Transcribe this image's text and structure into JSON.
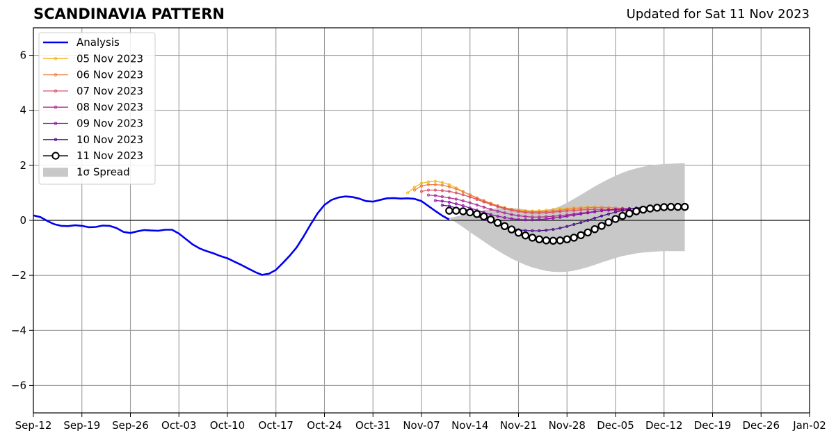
{
  "chart_data": {
    "type": "line",
    "title": "SCANDINAVIA PATTERN",
    "subtitle": "Updated for Sat 11 Nov 2023",
    "xlabel": "",
    "ylabel": "",
    "xlim": [
      "2023-09-12",
      "2024-01-02"
    ],
    "ylim": [
      -7,
      7
    ],
    "grid": true,
    "legend_position": "top-left",
    "x_ticks": [
      "2023-09-12",
      "2023-09-19",
      "2023-09-26",
      "2023-10-03",
      "2023-10-10",
      "2023-10-17",
      "2023-10-24",
      "2023-10-31",
      "2023-11-07",
      "2023-11-14",
      "2023-11-21",
      "2023-11-28",
      "2023-12-05",
      "2023-12-12",
      "2023-12-19",
      "2023-12-26",
      "2024-01-02"
    ],
    "x_tick_labels": [
      "Sep-12",
      "Sep-19",
      "Sep-26",
      "Oct-03",
      "Oct-10",
      "Oct-17",
      "Oct-24",
      "Oct-31",
      "Nov-07",
      "Nov-14",
      "Nov-21",
      "Nov-28",
      "Dec-05",
      "Dec-12",
      "Dec-19",
      "Dec-26",
      "Jan-02"
    ],
    "y_ticks": [
      -6,
      -4,
      -2,
      0,
      2,
      4,
      6
    ],
    "y_tick_labels": [
      "−6",
      "−4",
      "−2",
      "0",
      "2",
      "4",
      "6"
    ],
    "analysis": {
      "name": "Analysis",
      "color": "#0000ee",
      "points": [
        [
          "2023-09-12",
          0.18
        ],
        [
          "2023-09-13",
          0.12
        ],
        [
          "2023-09-14",
          -0.02
        ],
        [
          "2023-09-15",
          -0.14
        ],
        [
          "2023-09-16",
          -0.2
        ],
        [
          "2023-09-17",
          -0.21
        ],
        [
          "2023-09-18",
          -0.18
        ],
        [
          "2023-09-19",
          -0.2
        ],
        [
          "2023-09-20",
          -0.25
        ],
        [
          "2023-09-21",
          -0.24
        ],
        [
          "2023-09-22",
          -0.19
        ],
        [
          "2023-09-23",
          -0.2
        ],
        [
          "2023-09-24",
          -0.28
        ],
        [
          "2023-09-25",
          -0.42
        ],
        [
          "2023-09-26",
          -0.46
        ],
        [
          "2023-09-27",
          -0.4
        ],
        [
          "2023-09-28",
          -0.35
        ],
        [
          "2023-09-29",
          -0.37
        ],
        [
          "2023-09-30",
          -0.38
        ],
        [
          "2023-10-01",
          -0.34
        ],
        [
          "2023-10-02",
          -0.34
        ],
        [
          "2023-10-03",
          -0.48
        ],
        [
          "2023-10-04",
          -0.68
        ],
        [
          "2023-10-05",
          -0.88
        ],
        [
          "2023-10-06",
          -1.02
        ],
        [
          "2023-10-07",
          -1.12
        ],
        [
          "2023-10-08",
          -1.2
        ],
        [
          "2023-10-09",
          -1.3
        ],
        [
          "2023-10-10",
          -1.38
        ],
        [
          "2023-10-11",
          -1.5
        ],
        [
          "2023-10-12",
          -1.62
        ],
        [
          "2023-10-13",
          -1.75
        ],
        [
          "2023-10-14",
          -1.88
        ],
        [
          "2023-10-15",
          -1.98
        ],
        [
          "2023-10-16",
          -1.94
        ],
        [
          "2023-10-17",
          -1.8
        ],
        [
          "2023-10-18",
          -1.55
        ],
        [
          "2023-10-19",
          -1.28
        ],
        [
          "2023-10-20",
          -0.98
        ],
        [
          "2023-10-21",
          -0.58
        ],
        [
          "2023-10-22",
          -0.15
        ],
        [
          "2023-10-23",
          0.25
        ],
        [
          "2023-10-24",
          0.56
        ],
        [
          "2023-10-25",
          0.74
        ],
        [
          "2023-10-26",
          0.83
        ],
        [
          "2023-10-27",
          0.87
        ],
        [
          "2023-10-28",
          0.85
        ],
        [
          "2023-10-29",
          0.79
        ],
        [
          "2023-10-30",
          0.7
        ],
        [
          "2023-10-31",
          0.68
        ],
        [
          "2023-11-01",
          0.74
        ],
        [
          "2023-11-02",
          0.8
        ],
        [
          "2023-11-03",
          0.81
        ],
        [
          "2023-11-04",
          0.79
        ],
        [
          "2023-11-05",
          0.8
        ],
        [
          "2023-11-06",
          0.78
        ],
        [
          "2023-11-07",
          0.7
        ],
        [
          "2023-11-08",
          0.52
        ],
        [
          "2023-11-09",
          0.34
        ],
        [
          "2023-11-10",
          0.17
        ],
        [
          "2023-11-11",
          0.03
        ]
      ]
    },
    "forecast_x_start": [
      "2023-11-05",
      "2023-11-06",
      "2023-11-07",
      "2023-11-08",
      "2023-11-09",
      "2023-11-10",
      "2023-11-11"
    ],
    "series": [
      {
        "name": "05 Nov 2023",
        "color": "#f5b727",
        "type": "forecast",
        "values": [
          1.0,
          1.2,
          1.35,
          1.4,
          1.42,
          1.38,
          1.3,
          1.18,
          1.05,
          0.92,
          0.8,
          0.7,
          0.6,
          0.52,
          0.46,
          0.4,
          0.37,
          0.35,
          0.34,
          0.35,
          0.37,
          0.4,
          0.42,
          0.44,
          0.46,
          0.47,
          0.48,
          0.48,
          0.47,
          0.45,
          0.43,
          0.4
        ]
      },
      {
        "name": "06 Nov 2023",
        "color": "#ee7d3b",
        "type": "forecast",
        "values": [
          1.1,
          1.25,
          1.3,
          1.3,
          1.28,
          1.22,
          1.14,
          1.04,
          0.93,
          0.82,
          0.72,
          0.62,
          0.53,
          0.46,
          0.4,
          0.35,
          0.32,
          0.31,
          0.31,
          0.32,
          0.34,
          0.37,
          0.4,
          0.42,
          0.44,
          0.46,
          0.47,
          0.47,
          0.46,
          0.45,
          0.44,
          0.42
        ]
      },
      {
        "name": "07 Nov 2023",
        "color": "#d94f6a",
        "type": "forecast",
        "values": [
          1.05,
          1.1,
          1.1,
          1.08,
          1.05,
          1.0,
          0.93,
          0.85,
          0.76,
          0.67,
          0.58,
          0.5,
          0.43,
          0.37,
          0.32,
          0.29,
          0.27,
          0.27,
          0.28,
          0.3,
          0.32,
          0.34,
          0.36,
          0.38,
          0.39,
          0.4,
          0.4,
          0.39,
          0.38,
          0.36,
          0.35,
          0.33
        ]
      },
      {
        "name": "08 Nov 2023",
        "color": "#b02a8f",
        "type": "forecast",
        "values": [
          0.92,
          0.9,
          0.86,
          0.82,
          0.77,
          0.71,
          0.64,
          0.56,
          0.48,
          0.4,
          0.33,
          0.27,
          0.21,
          0.17,
          0.14,
          0.12,
          0.12,
          0.13,
          0.15,
          0.17,
          0.2,
          0.23,
          0.26,
          0.29,
          0.32,
          0.35,
          0.37,
          0.38,
          0.38,
          0.37,
          0.36,
          0.34
        ]
      },
      {
        "name": "09 Nov 2023",
        "color": "#8a10a8",
        "type": "forecast",
        "values": [
          0.72,
          0.7,
          0.66,
          0.6,
          0.53,
          0.45,
          0.37,
          0.29,
          0.21,
          0.15,
          0.1,
          0.06,
          0.03,
          0.02,
          0.02,
          0.03,
          0.05,
          0.08,
          0.11,
          0.15,
          0.19,
          0.23,
          0.27,
          0.31,
          0.35,
          0.38,
          0.4,
          0.42,
          0.43,
          0.43,
          0.42,
          0.41
        ]
      },
      {
        "name": "10 Nov 2023",
        "color": "#4b0c8a",
        "type": "forecast",
        "values": [
          0.55,
          0.52,
          0.45,
          0.36,
          0.26,
          0.15,
          0.04,
          -0.06,
          -0.15,
          -0.23,
          -0.29,
          -0.34,
          -0.37,
          -0.38,
          -0.38,
          -0.36,
          -0.33,
          -0.28,
          -0.22,
          -0.15,
          -0.08,
          0.0,
          0.08,
          0.16,
          0.23,
          0.3,
          0.36,
          0.41,
          0.45,
          0.47,
          0.49,
          0.5
        ]
      },
      {
        "name": "11 Nov 2023",
        "color": "#000000",
        "type": "current",
        "values": [
          0.35,
          0.35,
          0.33,
          0.29,
          0.23,
          0.14,
          0.03,
          -0.09,
          -0.21,
          -0.33,
          -0.45,
          -0.55,
          -0.63,
          -0.69,
          -0.73,
          -0.74,
          -0.73,
          -0.69,
          -0.63,
          -0.54,
          -0.44,
          -0.32,
          -0.2,
          -0.07,
          0.05,
          0.16,
          0.25,
          0.33,
          0.39,
          0.43,
          0.46,
          0.48,
          0.49,
          0.49,
          0.49
        ]
      }
    ],
    "spread": {
      "name": "1σ Spread",
      "color": "#c8c8c8",
      "start": "2023-11-11",
      "upper": [
        0.08,
        0.14,
        0.2,
        0.26,
        0.32,
        0.37,
        0.41,
        0.44,
        0.45,
        0.45,
        0.43,
        0.39,
        0.36,
        0.35,
        0.37,
        0.42,
        0.51,
        0.64,
        0.78,
        0.93,
        1.08,
        1.23,
        1.37,
        1.5,
        1.62,
        1.73,
        1.82,
        1.89,
        1.95,
        1.99,
        2.03,
        2.05,
        2.06,
        2.07,
        2.08
      ],
      "lower": [
        0.08,
        -0.08,
        -0.25,
        -0.43,
        -0.6,
        -0.77,
        -0.94,
        -1.1,
        -1.25,
        -1.39,
        -1.51,
        -1.62,
        -1.71,
        -1.78,
        -1.84,
        -1.87,
        -1.88,
        -1.87,
        -1.83,
        -1.77,
        -1.7,
        -1.62,
        -1.53,
        -1.45,
        -1.37,
        -1.3,
        -1.25,
        -1.2,
        -1.17,
        -1.15,
        -1.13,
        -1.12,
        -1.12,
        -1.12,
        -1.12
      ]
    }
  }
}
